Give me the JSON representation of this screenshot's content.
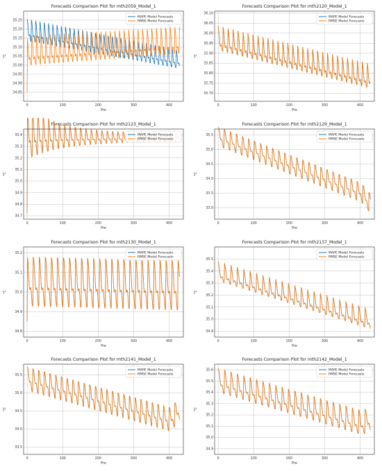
{
  "colors": {
    "mape": "#1f77b4",
    "rmse": "#ff7f0e",
    "grid": "#b0b0b0"
  },
  "chart_data": [
    {
      "type": "line",
      "title": "Forecasts Comparison Plot for mth2059_Model_1",
      "xlabel": "Pre",
      "ylabel": "°C",
      "xlim": [
        -10,
        440
      ],
      "ylim": [
        34.8,
        35.3
      ],
      "xticks": [
        0,
        100,
        200,
        300,
        400
      ],
      "yticks": [
        34.85,
        34.9,
        34.95,
        35.0,
        35.05,
        35.1,
        35.15,
        35.2,
        35.25
      ],
      "ytick_labels": [
        "34.85",
        "34.90",
        "34.95",
        "35.00",
        "35.05",
        "35.10",
        "35.15",
        "35.20",
        "35.25"
      ],
      "legend": "top-right",
      "grid": true,
      "series": [
        {
          "name": "MAPE Model Forecasts",
          "color_key": "mape",
          "gen": {
            "n": 430,
            "start": 35.18,
            "end": 35.02,
            "period": 12,
            "amp": 0.09,
            "sharp": 2.5,
            "decay": 0.2,
            "tail_end": 35.02
          }
        },
        {
          "name": "RMSE Model Forecasts",
          "color_key": "rmse",
          "gen": {
            "n": 430,
            "start": 35.06,
            "end": 35.12,
            "period": 13,
            "amp": 0.12,
            "sharp": 3,
            "decay": 0.1,
            "first": 34.85
          }
        }
      ]
    },
    {
      "type": "line",
      "title": "Forecasts Comparison Plot for mth2120_Model_1",
      "xlabel": "Pre",
      "ylabel": "°C",
      "xlim": [
        -10,
        440
      ],
      "ylim": [
        35.66,
        36.11
      ],
      "xticks": [
        0,
        100,
        200,
        300,
        400
      ],
      "yticks": [
        35.7,
        35.75,
        35.8,
        35.85,
        35.9,
        35.95,
        36.0,
        36.05,
        36.1
      ],
      "ytick_labels": [
        "35.70",
        "35.75",
        "35.80",
        "35.85",
        "35.90",
        "35.95",
        "36.00",
        "36.05",
        "36.10"
      ],
      "legend": "top-right",
      "grid": true,
      "series": [
        {
          "name": "MAPE Model Forecasts",
          "color_key": "mape",
          "gen": {
            "n": 430,
            "start": 35.96,
            "end": 35.77,
            "period": 14,
            "amp": 0.09,
            "sharp": 3,
            "decay": 0
          }
        },
        {
          "name": "RMSE Model Forecasts",
          "color_key": "rmse",
          "gen": {
            "n": 430,
            "start": 35.96,
            "end": 35.77,
            "period": 14,
            "amp": 0.09,
            "sharp": 3,
            "decay": 0
          }
        }
      ]
    },
    {
      "type": "line",
      "title": "Forecasts Comparison Plot for mth2123_Model_1",
      "xlabel": "Pre",
      "ylabel": "°C",
      "xlim": [
        -10,
        440
      ],
      "ylim": [
        34.67,
        35.45
      ],
      "xticks": [
        0,
        100,
        200,
        300,
        400
      ],
      "yticks": [
        34.7,
        34.8,
        34.9,
        35.0,
        35.1,
        35.2,
        35.3,
        35.4
      ],
      "ytick_labels": [
        "34.7",
        "34.8",
        "34.9",
        "35.0",
        "35.1",
        "35.2",
        "35.3",
        "35.4"
      ],
      "legend": "top-right",
      "grid": true,
      "series": [
        {
          "name": "MAPE Model Forecasts",
          "color_key": "mape",
          "gen": {
            "n": 430,
            "start": 35.36,
            "end": 35.37,
            "period": 15,
            "amp": 0.35,
            "sharp": 2,
            "decay": 4.5,
            "first": 34.72
          }
        },
        {
          "name": "RMSE Model Forecasts",
          "color_key": "rmse",
          "gen": {
            "n": 430,
            "start": 35.36,
            "end": 35.37,
            "period": 15,
            "amp": 0.35,
            "sharp": 2,
            "decay": 4.5,
            "first": 34.72
          }
        }
      ]
    },
    {
      "type": "line",
      "title": "Forecasts Comparison Plot for mth2129_Model_1",
      "xlabel": "Pre",
      "ylabel": "°C",
      "xlim": [
        -10,
        440
      ],
      "ylim": [
        32.6,
        35.7
      ],
      "xticks": [
        0,
        100,
        200,
        300,
        400
      ],
      "yticks": [
        33.0,
        33.5,
        34.0,
        34.5,
        35.0,
        35.5
      ],
      "ytick_labels": [
        "33.0",
        "33.5",
        "34.0",
        "34.5",
        "35.0",
        "35.5"
      ],
      "legend": "top-right",
      "grid": true,
      "series": [
        {
          "name": "MAPE Model Forecasts",
          "color_key": "mape",
          "gen": {
            "n": 430,
            "start": 35.35,
            "end": 33.3,
            "period": 17,
            "amp": 0.5,
            "sharp": 1.5,
            "decay": 0,
            "tail_end": 32.8
          }
        },
        {
          "name": "RMSE Model Forecasts",
          "color_key": "rmse",
          "gen": {
            "n": 430,
            "start": 35.35,
            "end": 33.3,
            "period": 17,
            "amp": 0.5,
            "sharp": 1.5,
            "decay": 0,
            "tail_end": 32.8
          }
        }
      ]
    },
    {
      "type": "line",
      "title": "Forecasts Comparison Plot for mth2130_Model_1",
      "xlabel": "Pre",
      "ylabel": "°C",
      "xlim": [
        -10,
        440
      ],
      "ylim": [
        34.77,
        35.23
      ],
      "xticks": [
        0,
        100,
        200,
        300,
        400
      ],
      "yticks": [
        34.8,
        34.9,
        35.0,
        35.1,
        35.2
      ],
      "ytick_labels": [
        "34.8",
        "34.9",
        "35.0",
        "35.1",
        "35.2"
      ],
      "legend": "top-right",
      "grid": true,
      "series": [
        {
          "name": "MAPE Model Forecasts",
          "color_key": "mape",
          "gen": {
            "n": 430,
            "start": 35.02,
            "end": 35.0,
            "period": 17,
            "amp": 0.19,
            "sharp": 1.8,
            "decay": 0,
            "first": 34.85
          }
        },
        {
          "name": "RMSE Model Forecasts",
          "color_key": "rmse",
          "gen": {
            "n": 430,
            "start": 35.02,
            "end": 35.0,
            "period": 17,
            "amp": 0.19,
            "sharp": 1.8,
            "decay": 0,
            "first": 34.85
          }
        }
      ]
    },
    {
      "type": "line",
      "title": "Forecasts Comparison Plot for mth2137_Model_1",
      "xlabel": "Pre",
      "ylabel": "°C",
      "xlim": [
        -10,
        440
      ],
      "ylim": [
        34.85,
        35.6
      ],
      "xticks": [
        0,
        100,
        200,
        300,
        400
      ],
      "yticks": [
        34.9,
        35.0,
        35.1,
        35.2,
        35.3,
        35.4,
        35.5
      ],
      "ytick_labels": [
        "34.9",
        "35.0",
        "35.1",
        "35.2",
        "35.3",
        "35.4",
        "35.5"
      ],
      "legend": "top-right",
      "grid": true,
      "series": [
        {
          "name": "MAPE Model Forecasts",
          "color_key": "mape",
          "gen": {
            "n": 430,
            "start": 35.38,
            "end": 34.98,
            "period": 18,
            "amp": 0.12,
            "sharp": 3,
            "decay": 0
          }
        },
        {
          "name": "RMSE Model Forecasts",
          "color_key": "rmse",
          "gen": {
            "n": 430,
            "start": 35.38,
            "end": 34.98,
            "period": 18,
            "amp": 0.12,
            "sharp": 3,
            "decay": 0
          }
        }
      ]
    },
    {
      "type": "line",
      "title": "Forecasts Comparison Plot for mth2141_Model_1",
      "xlabel": "Pre",
      "ylabel": "°C",
      "xlim": [
        -10,
        440
      ],
      "ylim": [
        33.3,
        35.8
      ],
      "xticks": [
        0,
        100,
        200,
        300,
        400
      ],
      "yticks": [
        33.5,
        34.0,
        34.5,
        35.0,
        35.5
      ],
      "ytick_labels": [
        "33.5",
        "34.0",
        "34.5",
        "35.0",
        "35.5"
      ],
      "legend": "top-right",
      "grid": true,
      "series": [
        {
          "name": "MAPE Model Forecasts",
          "color_key": "mape",
          "gen": {
            "n": 430,
            "start": 35.3,
            "end": 34.1,
            "period": 16,
            "amp": 0.5,
            "sharp": 1.5,
            "decay": 0,
            "tail_end": 34.8
          }
        },
        {
          "name": "RMSE Model Forecasts",
          "color_key": "rmse",
          "gen": {
            "n": 430,
            "start": 35.3,
            "end": 34.1,
            "period": 16,
            "amp": 0.5,
            "sharp": 1.5,
            "decay": 0,
            "tail_end": 34.8
          }
        }
      ]
    },
    {
      "type": "line",
      "title": "Forecasts Comparison Plot for mth2142_Model_1",
      "xlabel": "Pre",
      "ylabel": "°C",
      "xlim": [
        -10,
        440
      ],
      "ylim": [
        34.85,
        35.65
      ],
      "xticks": [
        0,
        100,
        200,
        300,
        400
      ],
      "yticks": [
        34.9,
        35.0,
        35.1,
        35.2,
        35.3,
        35.4,
        35.5,
        35.6
      ],
      "ytick_labels": [
        "34.9",
        "35.0",
        "35.1",
        "35.2",
        "35.3",
        "35.4",
        "35.5",
        "35.6"
      ],
      "legend": "top-right",
      "grid": true,
      "series": [
        {
          "name": "MAPE Model Forecasts",
          "color_key": "mape",
          "gen": {
            "n": 430,
            "start": 35.48,
            "end": 35.08,
            "period": 18,
            "amp": 0.16,
            "sharp": 2,
            "decay": 0,
            "tail_end": 35.2
          }
        },
        {
          "name": "RMSE Model Forecasts",
          "color_key": "rmse",
          "gen": {
            "n": 430,
            "start": 35.48,
            "end": 35.08,
            "period": 18,
            "amp": 0.16,
            "sharp": 2,
            "decay": 0,
            "tail_end": 35.2
          }
        }
      ]
    }
  ]
}
